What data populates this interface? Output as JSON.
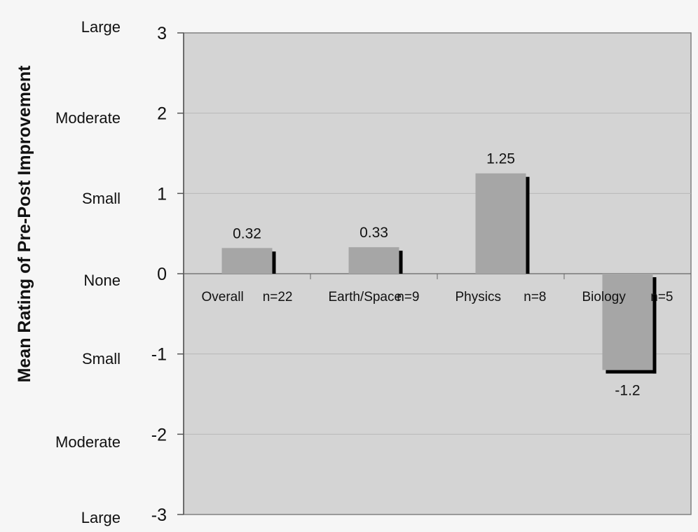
{
  "chart_data": {
    "type": "bar",
    "ylabel": "Mean Rating of Pre-Post Improvement",
    "ylim": [
      -3,
      3
    ],
    "yticks": [
      3,
      2,
      1,
      0,
      -1,
      -2,
      -3
    ],
    "ytick_labels": [
      "3",
      "2",
      "1",
      "0",
      "-1",
      "-2",
      "-3"
    ],
    "descriptor_labels": [
      "Large",
      "Moderate",
      "Small",
      "None",
      "Small",
      "Moderate",
      "Large"
    ],
    "categories": [
      "Overall",
      "Earth/Space",
      "Physics",
      "Biology"
    ],
    "n_labels": [
      "n=22",
      "n=9",
      "n=8",
      "n=5"
    ],
    "values": [
      0.32,
      0.33,
      1.25,
      -1.2
    ],
    "value_labels": [
      "0.32",
      "0.33",
      "1.25",
      "-1.2"
    ],
    "grid": true,
    "colors": {
      "plot_background": "#d4d4d4",
      "bar": "#a6a6a6",
      "bar_shadow": "#000000",
      "gridline": "#b8b8b8",
      "axis": "#808080"
    }
  }
}
